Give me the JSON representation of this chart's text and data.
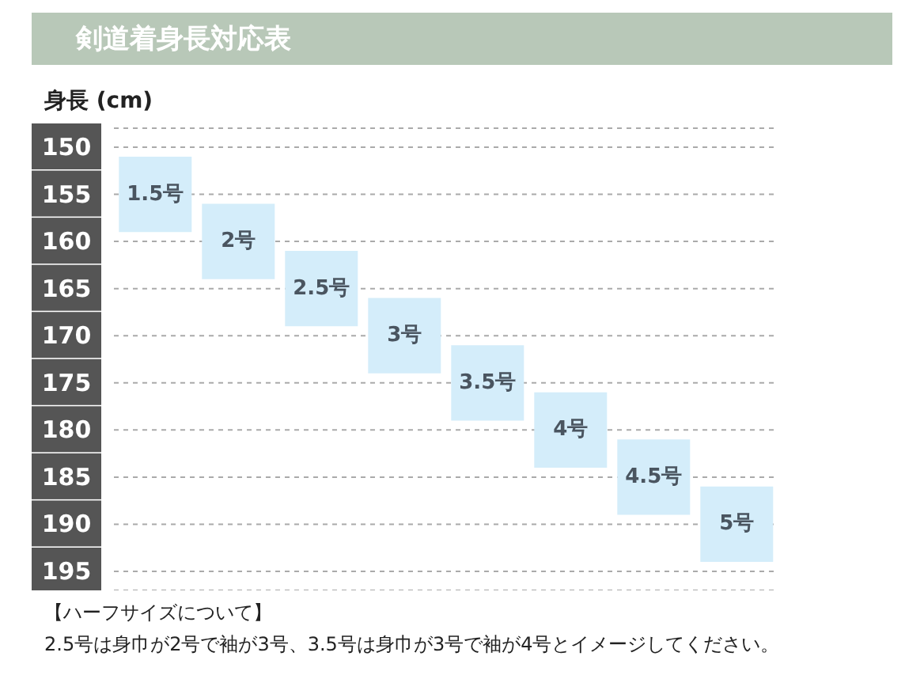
{
  "chart_data": {
    "type": "bar",
    "title": "剣道着身長対応表",
    "ylabel": "身長 (cm)",
    "categories": [
      "1.5号",
      "2号",
      "2.5号",
      "3号",
      "3.5号",
      "4号",
      "4.5号",
      "5号"
    ],
    "values": [
      8,
      8,
      8,
      8,
      8,
      8,
      8,
      8
    ],
    "base": [
      151,
      156,
      161,
      166,
      171,
      176,
      181,
      186
    ],
    "color": "#d4edfa",
    "ylim": [
      195,
      150
    ],
    "yticks": [
      150,
      155,
      160,
      165,
      170,
      175,
      180,
      185,
      190,
      195
    ],
    "grid": "y",
    "tick_labels": "y",
    "legend": false,
    "annotations": [
      "【ハーフサイズについて】",
      "2.5号は身巾が2号で袖が3号、3.5号は身巾が3号で袖が4号とイメージしてください。"
    ]
  }
}
